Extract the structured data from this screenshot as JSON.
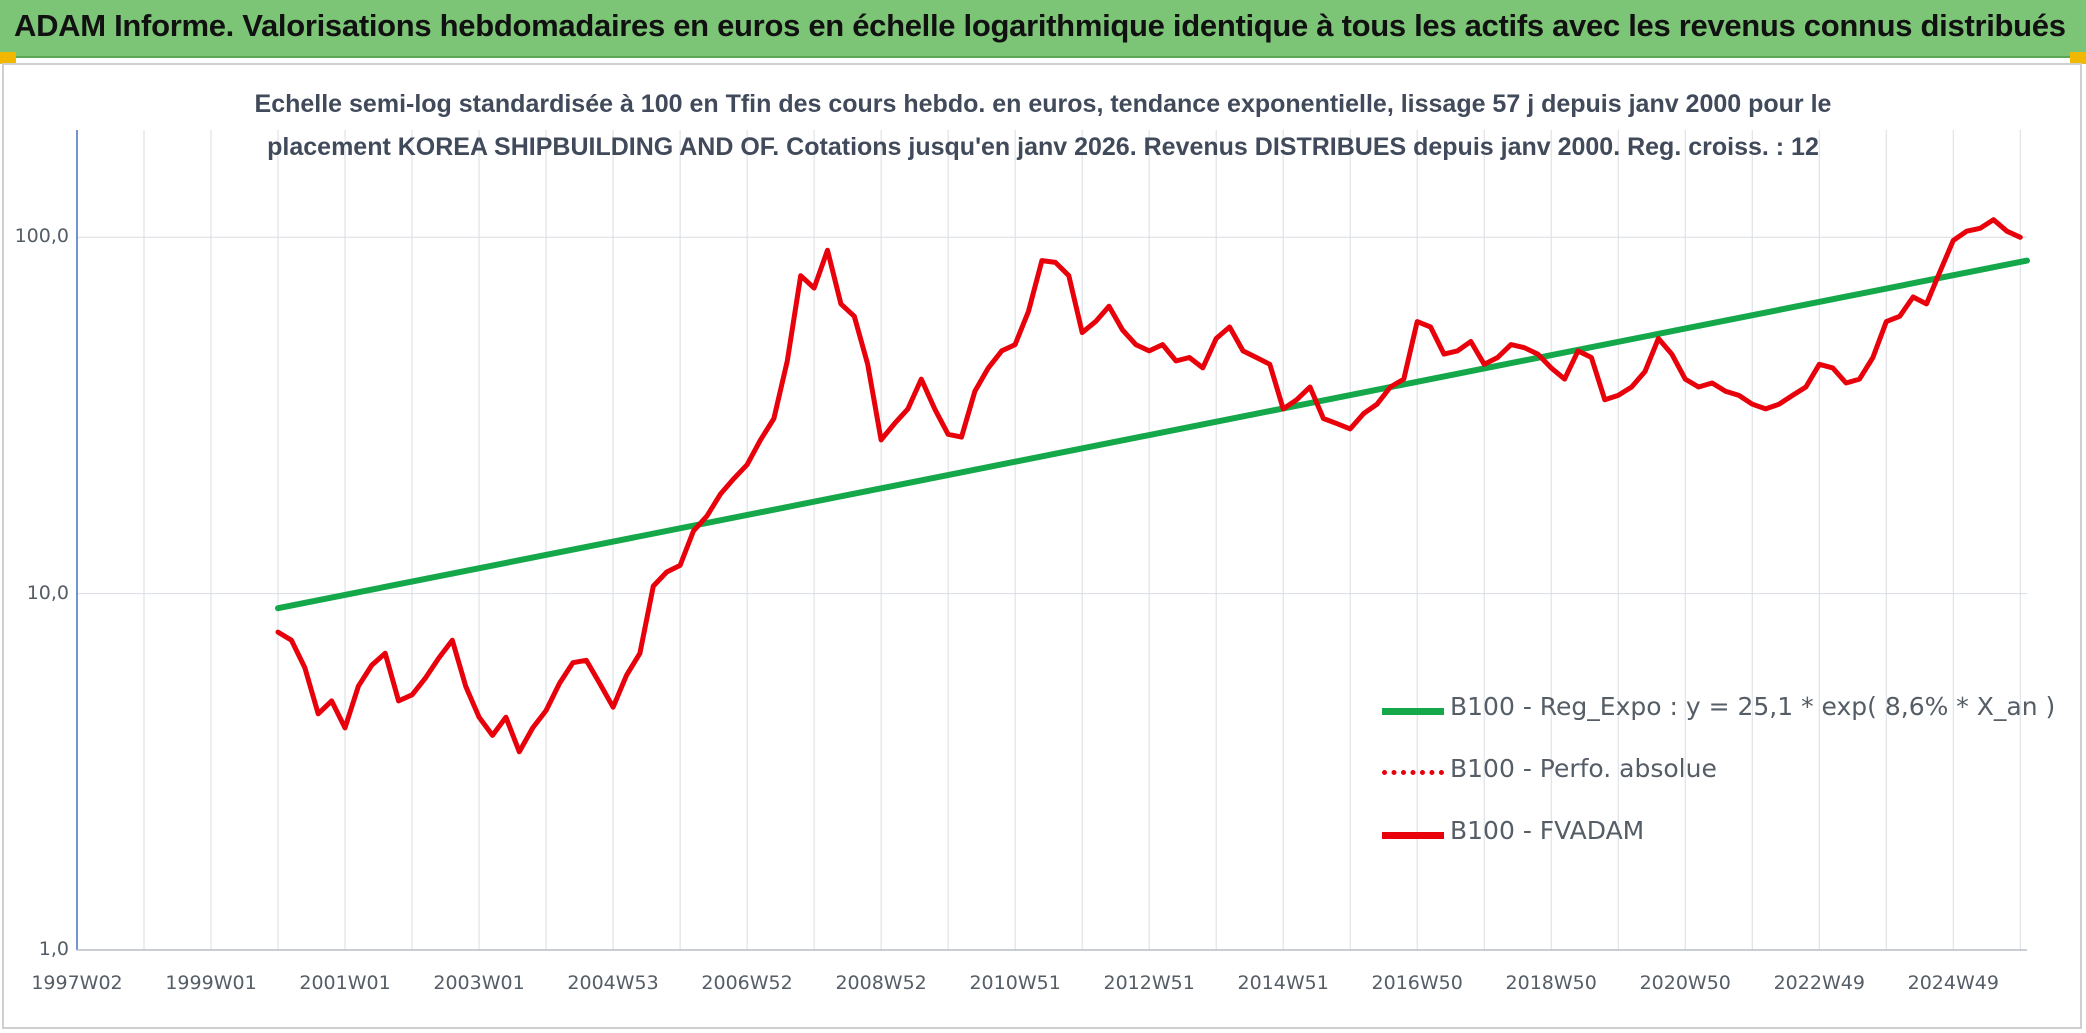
{
  "header": {
    "title": "ADAM Informe. Valorisations hebdomadaires en euros en échelle logarithmique identique à tous les actifs avec les revenus connus distribués"
  },
  "colors": {
    "header_bg": "#7cc576",
    "trend": "#14a84a",
    "series": "#e8000b",
    "grid": "#d9dde2",
    "axis": "#4472c4"
  },
  "chart_data": {
    "type": "line",
    "subtitle": [
      "Echelle semi-log standardisée à 100 en Tfin des cours hebdo. en euros, tendance exponentielle, lissage 57 j depuis janv 2000 pour le",
      "placement KOREA SHIPBUILDING AND OF. Cotations jusqu'en janv 2026. Revenus DISTRIBUES depuis janv 2000. Reg. croiss. : 12"
    ],
    "y_scale": "log",
    "ylim": [
      1,
      200
    ],
    "yticks": [
      {
        "value": 1,
        "label": "1,0"
      },
      {
        "value": 10,
        "label": "10,0"
      },
      {
        "value": 100,
        "label": "100,0"
      }
    ],
    "xlim": [
      1997.0,
      2026.1
    ],
    "xticks": [
      {
        "value": 1997.0,
        "label": "1997W02"
      },
      {
        "value": 1999.0,
        "label": "1999W01"
      },
      {
        "value": 2001.0,
        "label": "2001W01"
      },
      {
        "value": 2003.0,
        "label": "2003W01"
      },
      {
        "value": 2005.0,
        "label": "2004W53"
      },
      {
        "value": 2007.0,
        "label": "2006W52"
      },
      {
        "value": 2009.0,
        "label": "2008W52"
      },
      {
        "value": 2011.0,
        "label": "2010W51"
      },
      {
        "value": 2013.0,
        "label": "2012W51"
      },
      {
        "value": 2015.0,
        "label": "2014W51"
      },
      {
        "value": 2017.0,
        "label": "2016W50"
      },
      {
        "value": 2019.0,
        "label": "2018W50"
      },
      {
        "value": 2021.0,
        "label": "2020W50"
      },
      {
        "value": 2023.0,
        "label": "2022W49"
      },
      {
        "value": 2025.0,
        "label": "2024W49"
      }
    ],
    "grid": true,
    "legend_position": "bottom-right",
    "series": [
      {
        "name": "B100 - Reg_Expo : y = 25,1 * exp( 8,6% * X_an )",
        "style": "solid-green-thick",
        "x": [
          2000.0,
          2026.1
        ],
        "y": [
          9.1,
          86.0
        ]
      },
      {
        "name": "B100 - Perfo. absolue",
        "style": "dotted-red",
        "x": [],
        "y": []
      },
      {
        "name": "B100 - FVADAM",
        "style": "solid-red-thick",
        "x": [
          2000.0,
          2000.2,
          2000.4,
          2000.6,
          2000.8,
          2001.0,
          2001.2,
          2001.4,
          2001.6,
          2001.8,
          2002.0,
          2002.2,
          2002.4,
          2002.6,
          2002.8,
          2003.0,
          2003.2,
          2003.4,
          2003.6,
          2003.8,
          2004.0,
          2004.2,
          2004.4,
          2004.6,
          2004.8,
          2005.0,
          2005.2,
          2005.4,
          2005.6,
          2005.8,
          2006.0,
          2006.2,
          2006.4,
          2006.6,
          2006.8,
          2007.0,
          2007.2,
          2007.4,
          2007.6,
          2007.8,
          2008.0,
          2008.2,
          2008.4,
          2008.6,
          2008.8,
          2009.0,
          2009.2,
          2009.4,
          2009.6,
          2009.8,
          2010.0,
          2010.2,
          2010.4,
          2010.6,
          2010.8,
          2011.0,
          2011.2,
          2011.4,
          2011.6,
          2011.8,
          2012.0,
          2012.2,
          2012.4,
          2012.6,
          2012.8,
          2013.0,
          2013.2,
          2013.4,
          2013.6,
          2013.8,
          2014.0,
          2014.2,
          2014.4,
          2014.6,
          2014.8,
          2015.0,
          2015.2,
          2015.4,
          2015.6,
          2015.8,
          2016.0,
          2016.2,
          2016.4,
          2016.6,
          2016.8,
          2017.0,
          2017.2,
          2017.4,
          2017.6,
          2017.8,
          2018.0,
          2018.2,
          2018.4,
          2018.6,
          2018.8,
          2019.0,
          2019.2,
          2019.4,
          2019.6,
          2019.8,
          2020.0,
          2020.2,
          2020.4,
          2020.6,
          2020.8,
          2021.0,
          2021.2,
          2021.4,
          2021.6,
          2021.8,
          2022.0,
          2022.2,
          2022.4,
          2022.6,
          2022.8,
          2023.0,
          2023.2,
          2023.4,
          2023.6,
          2023.8,
          2024.0,
          2024.2,
          2024.4,
          2024.6,
          2024.8,
          2025.0,
          2025.2,
          2025.4,
          2025.6,
          2025.8,
          2026.0
        ],
        "y": [
          7.8,
          7.4,
          6.2,
          4.6,
          5.0,
          4.2,
          5.5,
          6.3,
          6.8,
          5.0,
          5.2,
          5.8,
          6.6,
          7.4,
          5.5,
          4.5,
          4.0,
          4.5,
          3.6,
          4.2,
          4.7,
          5.6,
          6.4,
          6.5,
          5.6,
          4.8,
          5.9,
          6.8,
          10.5,
          11.5,
          12.0,
          15.0,
          16.5,
          19.0,
          21.0,
          23.0,
          27.0,
          31.0,
          45.0,
          78.0,
          72.0,
          92.0,
          65.0,
          60.0,
          44.0,
          27.0,
          30.0,
          33.0,
          40.0,
          33.0,
          28.0,
          27.5,
          37.0,
          43.0,
          48.0,
          50.0,
          62.0,
          86.0,
          85.0,
          78.0,
          54.0,
          58.0,
          64.0,
          55.0,
          50.0,
          48.0,
          50.0,
          45.0,
          46.0,
          43.0,
          52.0,
          56.0,
          48.0,
          46.0,
          44.0,
          33.0,
          35.0,
          38.0,
          31.0,
          30.0,
          29.0,
          32.0,
          34.0,
          38.0,
          40.0,
          58.0,
          56.0,
          47.0,
          48.0,
          51.0,
          44.0,
          46.0,
          50.0,
          49.0,
          47.0,
          43.0,
          40.0,
          48.0,
          46.0,
          35.0,
          36.0,
          38.0,
          42.0,
          52.0,
          47.0,
          40.0,
          38.0,
          39.0,
          37.0,
          36.0,
          34.0,
          33.0,
          34.0,
          36.0,
          38.0,
          44.0,
          43.0,
          39.0,
          40.0,
          46.0,
          58.0,
          60.0,
          68.0,
          65.0,
          80.0,
          98.0,
          104.0,
          106.0,
          112.0,
          104.0,
          100.0
        ]
      }
    ]
  }
}
